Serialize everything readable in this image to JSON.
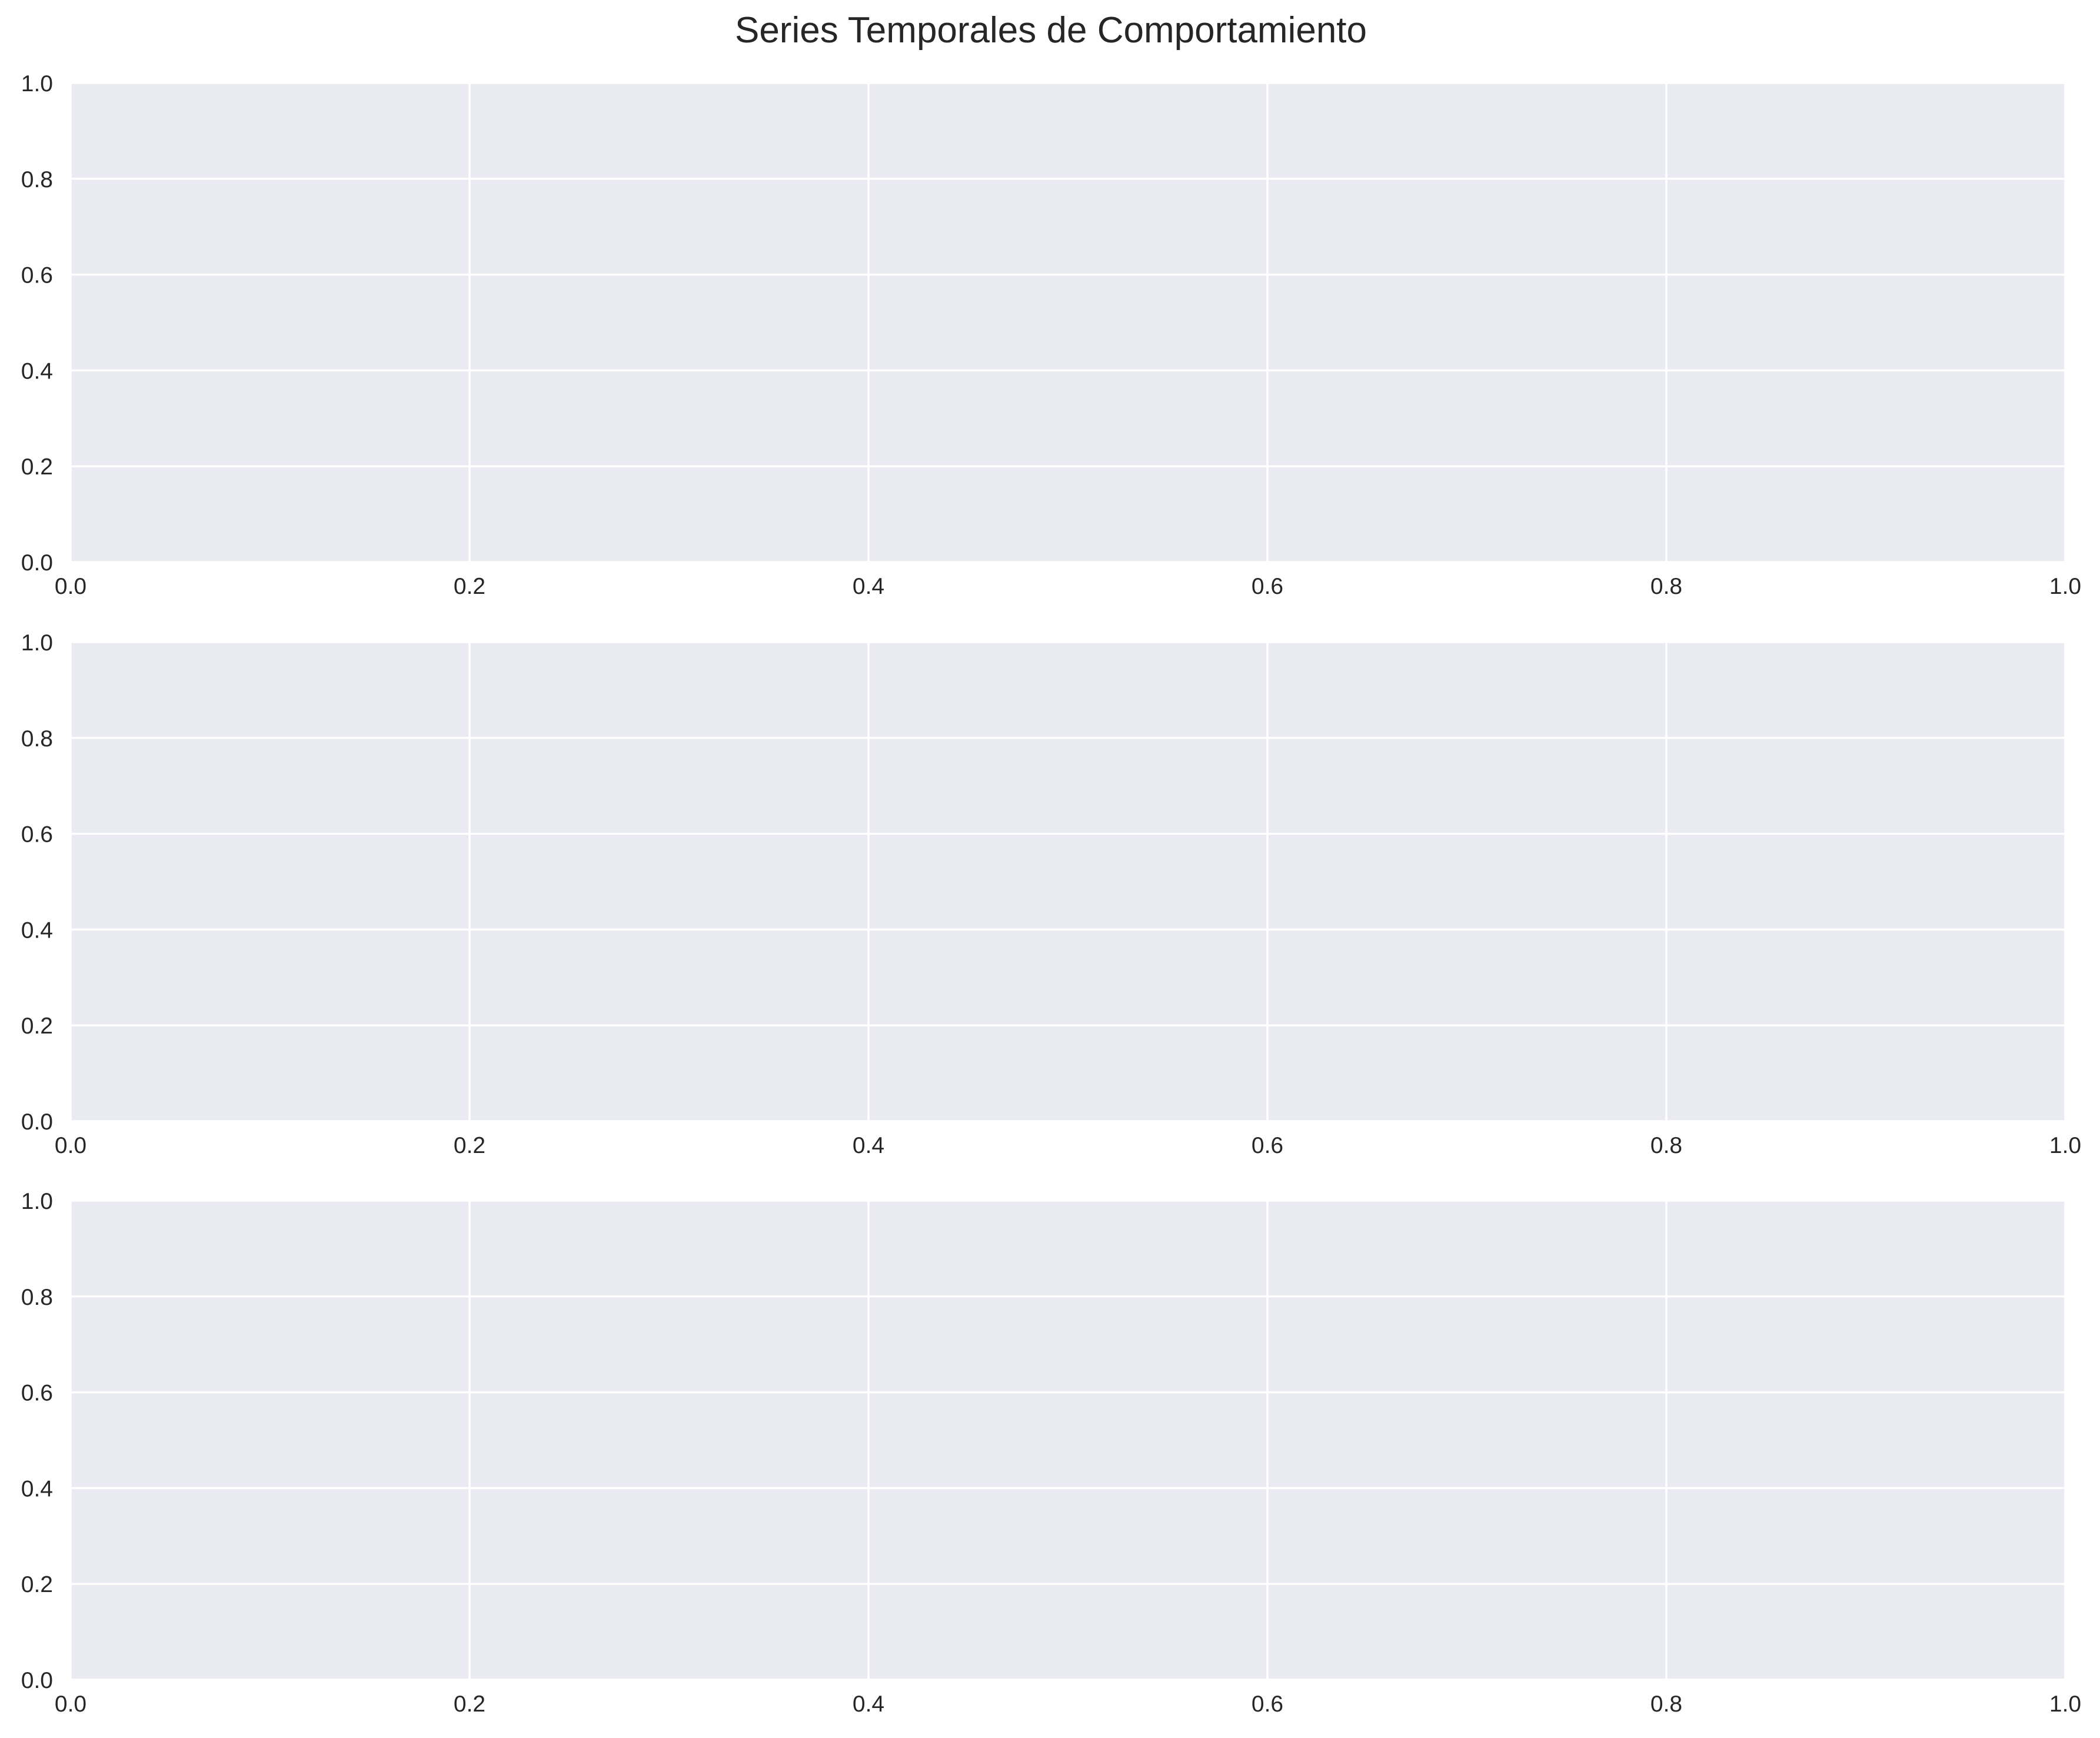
{
  "figure": {
    "title": "Series Temporales de Comportamiento",
    "background_color": "#ffffff",
    "panel_color": "#eaeaf2",
    "grid_color": "#ffffff",
    "text_color": "#262626"
  },
  "chart_data": [
    {
      "type": "line",
      "title": "",
      "xlabel": "",
      "ylabel": "",
      "xlim": [
        0.0,
        1.0
      ],
      "ylim": [
        0.0,
        1.0
      ],
      "xticks": [
        "0.0",
        "0.2",
        "0.4",
        "0.6",
        "0.8",
        "1.0"
      ],
      "yticks": [
        "0.0",
        "0.2",
        "0.4",
        "0.6",
        "0.8",
        "1.0"
      ],
      "grid": true,
      "series": []
    },
    {
      "type": "line",
      "title": "",
      "xlabel": "",
      "ylabel": "",
      "xlim": [
        0.0,
        1.0
      ],
      "ylim": [
        0.0,
        1.0
      ],
      "xticks": [
        "0.0",
        "0.2",
        "0.4",
        "0.6",
        "0.8",
        "1.0"
      ],
      "yticks": [
        "0.0",
        "0.2",
        "0.4",
        "0.6",
        "0.8",
        "1.0"
      ],
      "grid": true,
      "series": []
    },
    {
      "type": "line",
      "title": "",
      "xlabel": "",
      "ylabel": "",
      "xlim": [
        0.0,
        1.0
      ],
      "ylim": [
        0.0,
        1.0
      ],
      "xticks": [
        "0.0",
        "0.2",
        "0.4",
        "0.6",
        "0.8",
        "1.0"
      ],
      "yticks": [
        "0.0",
        "0.2",
        "0.4",
        "0.6",
        "0.8",
        "1.0"
      ],
      "grid": true,
      "series": []
    }
  ]
}
